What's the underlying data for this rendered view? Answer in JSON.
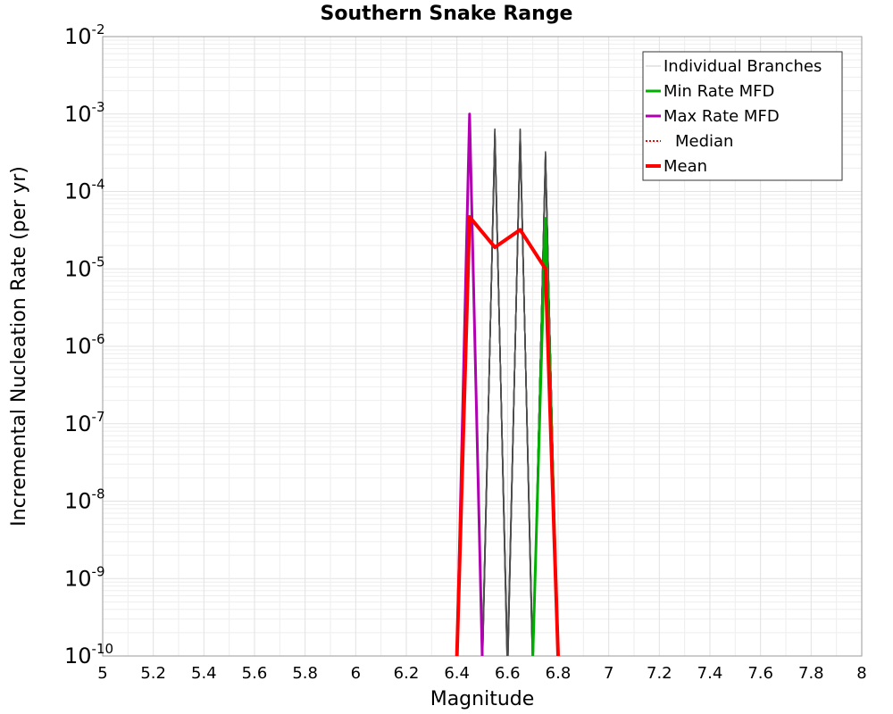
{
  "chart_data": {
    "type": "line",
    "title": "Southern Snake Range",
    "xlabel": "Magnitude",
    "ylabel": "Incremental Nucleation Rate (per yr)",
    "xlim": [
      5,
      8
    ],
    "ylim": [
      1e-10,
      0.01
    ],
    "yscale": "log",
    "grid": true,
    "legend_position": "top-right",
    "x_ticks": [
      "5",
      "5.2",
      "5.4",
      "5.6",
      "5.8",
      "6",
      "6.2",
      "6.4",
      "6.6",
      "6.8",
      "7",
      "7.2",
      "7.4",
      "7.6",
      "7.8",
      "8"
    ],
    "y_ticks": [
      {
        "base": "10",
        "exp": "-2"
      },
      {
        "base": "10",
        "exp": "-3"
      },
      {
        "base": "10",
        "exp": "-4"
      },
      {
        "base": "10",
        "exp": "-5"
      },
      {
        "base": "10",
        "exp": "-6"
      },
      {
        "base": "10",
        "exp": "-7"
      },
      {
        "base": "10",
        "exp": "-8"
      },
      {
        "base": "10",
        "exp": "-9"
      },
      {
        "base": "10",
        "exp": "-10"
      }
    ],
    "series": [
      {
        "name": "Individual Branches",
        "color": "#4d4d4d",
        "style": "thin",
        "spikes": [
          {
            "center": 6.55,
            "peak": 0.00065,
            "width": 0.05
          },
          {
            "center": 6.65,
            "peak": 0.00065,
            "width": 0.05
          },
          {
            "center": 6.75,
            "peak": 0.00033,
            "width": 0.05
          }
        ]
      },
      {
        "name": "Min Rate MFD",
        "color": "#00b000",
        "style": "solid",
        "x": [
          6.7,
          6.75,
          6.8
        ],
        "y": [
          1e-10,
          4.5e-05,
          1e-10
        ]
      },
      {
        "name": "Max Rate MFD",
        "color": "#b000b0",
        "style": "solid",
        "x": [
          6.4,
          6.45,
          6.5
        ],
        "y": [
          1e-10,
          0.001,
          1e-10
        ]
      },
      {
        "name": "Median",
        "color": "#ff0000",
        "style": "dotted",
        "x": [],
        "y": []
      },
      {
        "name": "Mean",
        "color": "#ff0000",
        "style": "thick",
        "x": [
          6.4,
          6.45,
          6.55,
          6.65,
          6.75,
          6.8
        ],
        "y": [
          1e-10,
          4.7e-05,
          1.9e-05,
          3.2e-05,
          1e-05,
          1e-10
        ]
      }
    ]
  }
}
